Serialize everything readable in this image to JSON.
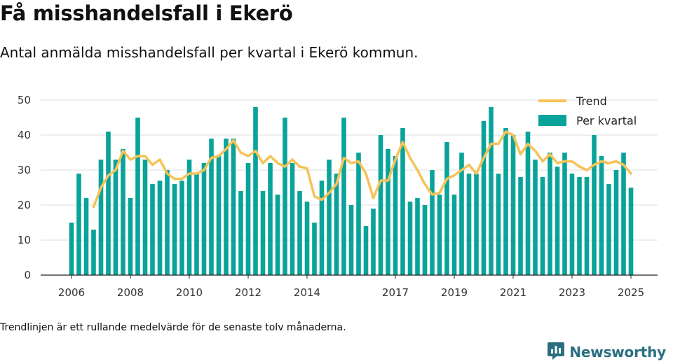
{
  "header": {
    "title": "Få misshandelsfall i Ekerö",
    "subtitle": "Antal anmälda misshandelsfall per kvartal i Ekerö kommun."
  },
  "footer": {
    "note": "Trendlinjen är ett rullande medelvärde för de senaste tolv månaderna.",
    "brand": "Newsworthy",
    "brand_icon": "newsworthy-logo-icon"
  },
  "colors": {
    "bar": "#0aa39a",
    "trend": "#f5c357",
    "grid": "#dddddd",
    "axis": "#222222",
    "brand": "#2a6f80"
  },
  "chart_data": {
    "type": "bar",
    "x_start": 2006,
    "periods_per_year": 4,
    "ylim": [
      0,
      50
    ],
    "yticks": [
      0,
      10,
      20,
      30,
      40,
      50
    ],
    "xticks": [
      "2006",
      "2008",
      "2010",
      "2012",
      "2014",
      "2017",
      "2019",
      "2021",
      "2023",
      "2025"
    ],
    "grid": "horizontal",
    "legend_position": "top-right",
    "series": [
      {
        "name": "Per kvartal",
        "kind": "bar",
        "values": [
          15,
          29,
          22,
          13,
          33,
          41,
          33,
          36,
          22,
          45,
          33,
          26,
          27,
          30,
          26,
          27,
          33,
          29,
          32,
          39,
          34,
          39,
          39,
          24,
          32,
          48,
          24,
          32,
          23,
          45,
          32,
          24,
          21,
          15,
          27,
          33,
          29,
          45,
          20,
          35,
          14,
          19,
          40,
          36,
          34,
          42,
          21,
          22,
          20,
          30,
          23,
          38,
          23,
          35,
          29,
          29,
          44,
          48,
          29,
          42,
          40,
          28,
          41,
          33,
          28,
          35,
          31,
          35,
          29,
          28,
          28,
          40,
          34,
          26,
          30,
          35,
          25
        ]
      },
      {
        "name": "Trend",
        "kind": "line",
        "start_index": 3,
        "values": [
          19.5,
          25,
          28.5,
          30,
          35.5,
          33,
          34,
          34,
          31.5,
          33,
          29,
          27.5,
          27.5,
          29,
          29,
          30,
          33.5,
          34,
          36,
          38.5,
          35,
          34,
          35.5,
          32,
          34,
          32,
          31,
          33,
          31,
          30.5,
          22.5,
          21.5,
          23.5,
          26,
          33.5,
          32,
          32.5,
          29,
          22,
          27,
          27,
          33,
          38,
          33.5,
          30,
          26,
          23,
          23.5,
          27.5,
          28.5,
          30,
          31.5,
          29,
          33.5,
          37.5,
          37.5,
          41,
          40,
          34.5,
          37.5,
          35.5,
          32.5,
          34.5,
          32,
          32.5,
          32.5,
          31,
          30,
          31.5,
          32.5,
          32,
          32.5,
          31.5,
          29
        ]
      }
    ]
  }
}
